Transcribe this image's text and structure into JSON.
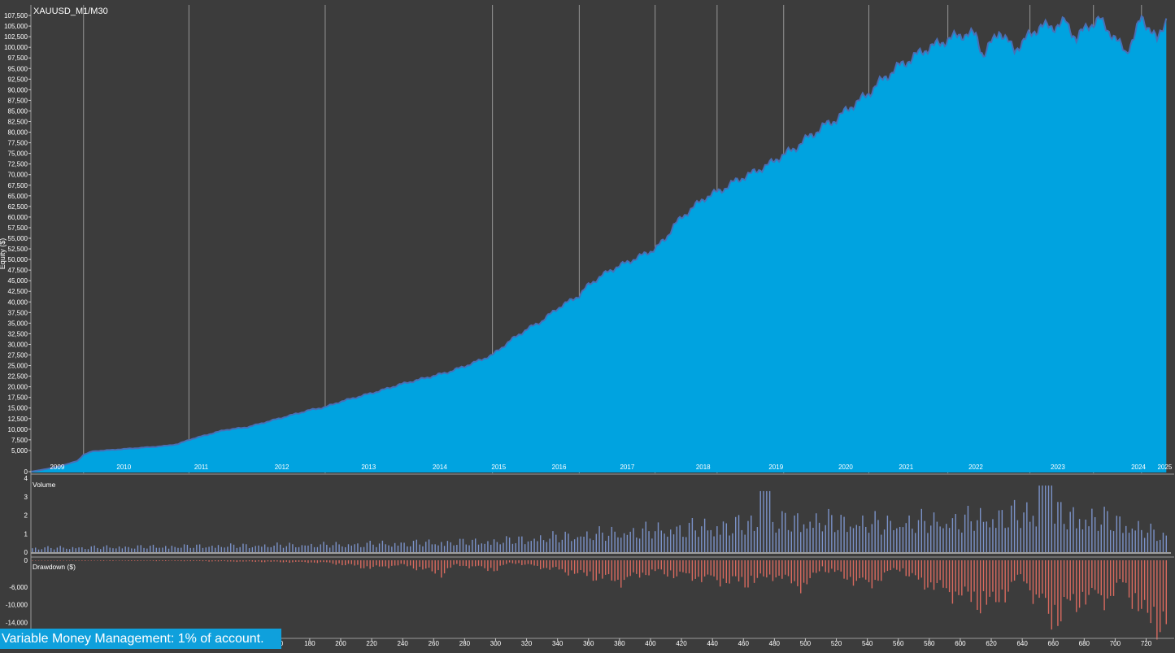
{
  "title": "XAUUSD_M1/M30",
  "banner": "Variable Money Management: 1% of account.",
  "colors": {
    "background": "#3c3c3c",
    "grid": "#a0a0a0",
    "equity_fill": "#00a3e0",
    "equity_line": "#4a6fb5",
    "volume_bar": "#7b92c8",
    "drawdown_bar": "#d96a5f",
    "text": "#ffffff"
  },
  "chart_data": [
    {
      "type": "area",
      "name": "equity",
      "ylabel": "Equity ($)",
      "ylim": [
        0,
        110000
      ],
      "yticks": [
        0,
        5000,
        7500,
        10000,
        12500,
        15000,
        17500,
        20000,
        22500,
        25000,
        27500,
        30000,
        32500,
        35000,
        37500,
        40000,
        42500,
        45000,
        47500,
        50000,
        52500,
        55000,
        57500,
        60000,
        62500,
        65000,
        67500,
        70000,
        72500,
        75000,
        77500,
        80000,
        82500,
        85000,
        87500,
        90000,
        92500,
        95000,
        97500,
        100000,
        102500,
        105000,
        107500
      ],
      "ytick_labels": [
        "0",
        "5,000",
        "7,500",
        "10,000",
        "12,500",
        "15,000",
        "17,500",
        "20,000",
        "22,500",
        "25,000",
        "27,500",
        "30,000",
        "32,500",
        "35,000",
        "37,500",
        "40,000",
        "42,500",
        "45,000",
        "47,500",
        "50,000",
        "52,500",
        "55,000",
        "57,500",
        "60,000",
        "62,500",
        "65,000",
        "67,500",
        "70,000",
        "72,500",
        "75,000",
        "77,500",
        "80,000",
        "82,500",
        "85,000",
        "87,500",
        "90,000",
        "92,500",
        "95,000",
        "97,500",
        "100,000",
        "102,500",
        "105,000",
        "107,500"
      ],
      "year_boundaries": [
        34,
        102,
        190,
        298,
        354,
        403,
        443,
        486,
        541,
        592,
        645,
        686,
        717,
        771,
        826,
        880,
        913
      ],
      "years": [
        {
          "label": "2009",
          "x": 17
        },
        {
          "label": "2010",
          "x": 60
        },
        {
          "label": "2011",
          "x": 110
        },
        {
          "label": "2012",
          "x": 162
        },
        {
          "label": "2013",
          "x": 218
        },
        {
          "label": "2014",
          "x": 264
        },
        {
          "label": "2015",
          "x": 302
        },
        {
          "label": "2016",
          "x": 341
        },
        {
          "label": "2017",
          "x": 385
        },
        {
          "label": "2018",
          "x": 434
        },
        {
          "label": "2019",
          "x": 481
        },
        {
          "label": "2020",
          "x": 526
        },
        {
          "label": "2021",
          "x": 565
        },
        {
          "label": "2022",
          "x": 610
        },
        {
          "label": "2023",
          "x": 663
        },
        {
          "label": "2024",
          "x": 715
        },
        {
          "label": "2025",
          "x": 732
        }
      ],
      "x": [
        0,
        8,
        18,
        30,
        34,
        40,
        55,
        70,
        85,
        95,
        102,
        112,
        125,
        140,
        150,
        165,
        180,
        190,
        200,
        215,
        225,
        238,
        252,
        270,
        285,
        298,
        310,
        320,
        330,
        340,
        354,
        360,
        372,
        380,
        392,
        403,
        410,
        415,
        425,
        435,
        448,
        455,
        465,
        477,
        486,
        493,
        498,
        505,
        512,
        520,
        526,
        530,
        540,
        546,
        552,
        560,
        568,
        575,
        582,
        590,
        600,
        610,
        615,
        620,
        625,
        630,
        635,
        640,
        645,
        652,
        660,
        668,
        675,
        682,
        690,
        697,
        702,
        707,
        712,
        717,
        722,
        727,
        733
      ],
      "values": [
        0,
        500,
        1200,
        2500,
        4000,
        4800,
        5200,
        5600,
        6000,
        6500,
        7500,
        8500,
        9800,
        10500,
        11500,
        13000,
        14500,
        15200,
        16500,
        18000,
        19000,
        20500,
        21800,
        23500,
        25500,
        27500,
        31000,
        33500,
        35500,
        38500,
        41500,
        44000,
        47000,
        48500,
        50500,
        52500,
        55000,
        58000,
        61500,
        64500,
        66800,
        68500,
        70200,
        72500,
        74800,
        76000,
        77800,
        79500,
        81500,
        83000,
        85000,
        86200,
        88800,
        91200,
        93000,
        95500,
        97200,
        99000,
        100200,
        101500,
        103000,
        103000,
        98000,
        101000,
        104000,
        101500,
        99500,
        101000,
        103000,
        105000,
        104800,
        106000,
        102000,
        105000,
        106500,
        103500,
        101000,
        99000,
        102000,
        107300,
        104500,
        101500,
        107000
      ]
    },
    {
      "type": "bar",
      "name": "volume",
      "title": "Volume",
      "ylim": [
        0,
        4
      ],
      "yticks": [
        0,
        1,
        2,
        3,
        4
      ],
      "ytick_labels": [
        "0",
        "1",
        "2",
        "3",
        "4"
      ],
      "x_profile": [
        0,
        100,
        200,
        300,
        400,
        450,
        500,
        550,
        600,
        650,
        700,
        733
      ],
      "value_profile": [
        0.25,
        0.35,
        0.45,
        0.65,
        1.3,
        1.6,
        1.9,
        1.7,
        1.9,
        2.4,
        1.9,
        0.9
      ]
    },
    {
      "type": "bar",
      "name": "drawdown",
      "title": "Drawdown ($)",
      "ylim": [
        -17000,
        0
      ],
      "yticks": [
        0,
        -6000,
        -10000,
        -14000
      ],
      "ytick_labels": [
        "0",
        "-6,000",
        "-10,000",
        "-14,000"
      ],
      "x_profile": [
        0,
        100,
        150,
        190,
        220,
        240,
        265,
        275,
        300,
        310,
        340,
        380,
        400,
        430,
        460,
        480,
        500,
        510,
        540,
        560,
        570,
        620,
        640,
        650,
        660,
        670,
        680,
        695,
        705,
        720,
        733
      ],
      "value_profile": [
        -100,
        -200,
        -400,
        -600,
        -2000,
        -1200,
        -3500,
        -1200,
        -2500,
        -600,
        -2500,
        -5500,
        -3000,
        -4500,
        -6000,
        -4000,
        -7000,
        -2000,
        -6500,
        -2000,
        -5000,
        -12000,
        -4000,
        -11000,
        -15000,
        -13000,
        -9500,
        -10000,
        -6000,
        -15500,
        -16500
      ],
      "xticks": [
        180,
        200,
        220,
        240,
        260,
        280,
        300,
        320,
        340,
        360,
        380,
        400,
        420,
        440,
        460,
        480,
        500,
        520,
        540,
        560,
        580,
        600,
        620,
        640,
        660,
        680,
        700,
        720
      ],
      "xtick_labels": [
        "180",
        "200",
        "220",
        "240",
        "260",
        "280",
        "300",
        "320",
        "340",
        "360",
        "380",
        "400",
        "420",
        "440",
        "460",
        "480",
        "500",
        "520",
        "540",
        "560",
        "580",
        "600",
        "620",
        "640",
        "660",
        "680",
        "700",
        "720"
      ],
      "xtick_partial": "0"
    }
  ]
}
